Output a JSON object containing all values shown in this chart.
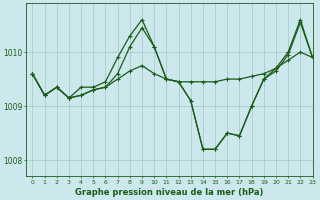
{
  "title": "Graphe pression niveau de la mer (hPa)",
  "bg_color": "#cce8ec",
  "grid_color": "#aacccc",
  "line_color": "#1a5c1a",
  "xlim": [
    -0.5,
    23
  ],
  "ylim": [
    1007.7,
    1010.9
  ],
  "yticks": [
    1008,
    1009,
    1010
  ],
  "xticks": [
    0,
    1,
    2,
    3,
    4,
    5,
    6,
    7,
    8,
    9,
    10,
    11,
    12,
    13,
    14,
    15,
    16,
    17,
    18,
    19,
    20,
    21,
    22,
    23
  ],
  "series": [
    {
      "x": [
        0,
        1,
        2,
        3,
        4,
        5,
        6,
        7,
        8,
        9,
        10,
        11,
        12,
        13,
        14,
        15,
        16,
        17,
        18,
        19,
        20,
        21,
        22,
        23
      ],
      "y": [
        1009.6,
        1009.2,
        1009.35,
        1009.15,
        1009.2,
        1009.3,
        1009.35,
        1009.5,
        1009.65,
        1009.75,
        1009.6,
        1009.5,
        1009.45,
        1009.45,
        1009.45,
        1009.45,
        1009.5,
        1009.5,
        1009.55,
        1009.6,
        1009.7,
        1009.85,
        1010.0,
        1009.9
      ]
    },
    {
      "x": [
        0,
        1,
        2,
        3,
        4,
        5,
        6,
        7,
        8,
        9,
        10,
        11,
        12,
        13,
        14,
        15,
        16,
        17,
        18,
        19,
        20,
        21,
        22,
        23
      ],
      "y": [
        1009.6,
        1009.2,
        1009.35,
        1009.15,
        1009.2,
        1009.3,
        1009.35,
        1009.6,
        1010.1,
        1010.45,
        1010.1,
        1009.5,
        1009.45,
        1009.1,
        1008.2,
        1008.2,
        1008.5,
        1008.45,
        1009.0,
        1009.5,
        1009.65,
        1009.95,
        1010.55,
        1009.9
      ]
    },
    {
      "x": [
        0,
        1,
        2,
        3,
        4,
        5,
        6,
        7,
        8,
        9,
        10,
        11,
        12,
        13,
        14,
        15,
        16,
        17,
        18,
        19,
        20,
        21,
        22,
        23
      ],
      "y": [
        1009.6,
        1009.2,
        1009.35,
        1009.15,
        1009.35,
        1009.35,
        1009.45,
        1009.9,
        1010.3,
        1010.6,
        1010.1,
        1009.5,
        1009.45,
        1009.1,
        1008.2,
        1008.2,
        1008.5,
        1008.45,
        1009.0,
        1009.5,
        1009.7,
        1010.0,
        1010.6,
        1009.9
      ]
    }
  ]
}
